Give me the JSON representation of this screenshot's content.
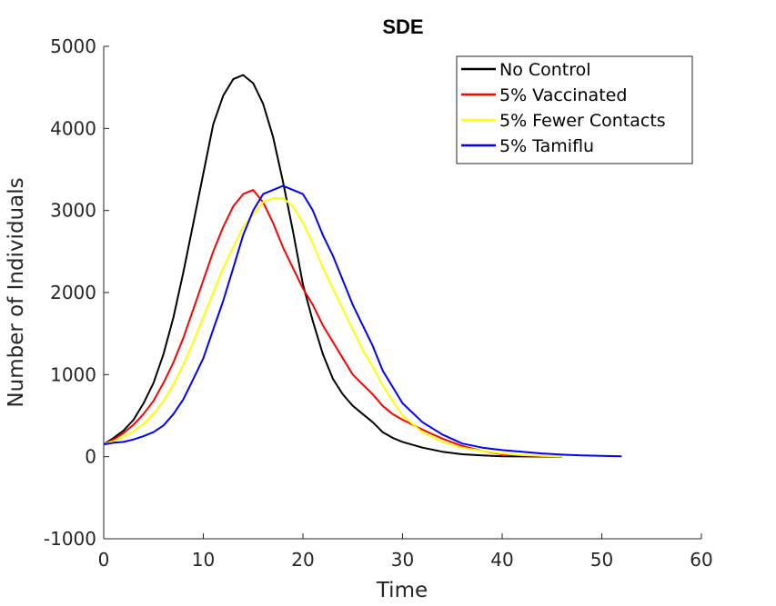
{
  "chart_data": {
    "type": "line",
    "title": "SDE",
    "xlabel": "Time",
    "ylabel": "Number of Individuals",
    "xlim": [
      0,
      60
    ],
    "ylim": [
      -1000,
      5000
    ],
    "xticks": [
      0,
      10,
      20,
      30,
      40,
      50,
      60
    ],
    "yticks": [
      -1000,
      0,
      1000,
      2000,
      3000,
      4000,
      5000
    ],
    "grid": false,
    "legend_position": "top-right",
    "series": [
      {
        "name": "No Control",
        "color": "#000000",
        "x": [
          0,
          1,
          2,
          3,
          4,
          5,
          6,
          7,
          8,
          9,
          10,
          11,
          12,
          13,
          14,
          15,
          16,
          17,
          18,
          19,
          20,
          21,
          22,
          23,
          24,
          25,
          26,
          27,
          28,
          29,
          30,
          32,
          34,
          36,
          38,
          40,
          42,
          44,
          46
        ],
        "y": [
          150,
          230,
          320,
          450,
          650,
          900,
          1250,
          1700,
          2250,
          2850,
          3450,
          4050,
          4400,
          4600,
          4650,
          4550,
          4300,
          3900,
          3350,
          2750,
          2100,
          1650,
          1250,
          950,
          760,
          620,
          520,
          420,
          300,
          230,
          180,
          110,
          60,
          30,
          15,
          5,
          3,
          2,
          1
        ]
      },
      {
        "name": "5% Vaccinated",
        "color": "#ff0000",
        "x": [
          0,
          1,
          2,
          3,
          4,
          5,
          6,
          7,
          8,
          9,
          10,
          11,
          12,
          13,
          14,
          15,
          16,
          17,
          18,
          19,
          20,
          21,
          22,
          23,
          24,
          25,
          26,
          27,
          28,
          29,
          30,
          32,
          34,
          36,
          38,
          40,
          42,
          44,
          46
        ],
        "y": [
          150,
          210,
          290,
          390,
          520,
          680,
          900,
          1150,
          1450,
          1800,
          2150,
          2500,
          2800,
          3050,
          3200,
          3250,
          3100,
          2850,
          2550,
          2300,
          2050,
          1850,
          1600,
          1400,
          1200,
          1000,
          880,
          760,
          620,
          520,
          450,
          330,
          220,
          130,
          70,
          30,
          15,
          8,
          3
        ]
      },
      {
        "name": "5% Fewer Contacts",
        "color": "#ffff00",
        "x": [
          0,
          1,
          2,
          3,
          4,
          5,
          6,
          7,
          8,
          9,
          10,
          11,
          12,
          13,
          14,
          15,
          16,
          17,
          18,
          19,
          20,
          21,
          22,
          23,
          24,
          25,
          26,
          27,
          28,
          29,
          30,
          32,
          34,
          36,
          38,
          40,
          42,
          44,
          46
        ],
        "y": [
          150,
          190,
          240,
          310,
          400,
          520,
          680,
          880,
          1120,
          1400,
          1700,
          2000,
          2300,
          2550,
          2800,
          2950,
          3100,
          3150,
          3150,
          3050,
          2850,
          2600,
          2300,
          2050,
          1800,
          1550,
          1300,
          1100,
          870,
          680,
          500,
          300,
          180,
          110,
          70,
          40,
          20,
          10,
          5
        ]
      },
      {
        "name": "5% Tamiflu",
        "color": "#0000ff",
        "x": [
          0,
          1,
          2,
          3,
          4,
          5,
          6,
          7,
          8,
          9,
          10,
          11,
          12,
          13,
          14,
          15,
          16,
          17,
          18,
          19,
          20,
          21,
          22,
          23,
          24,
          25,
          26,
          27,
          28,
          29,
          30,
          32,
          34,
          36,
          38,
          40,
          42,
          44,
          46,
          48,
          50,
          52
        ],
        "y": [
          150,
          170,
          180,
          210,
          250,
          300,
          380,
          520,
          700,
          950,
          1200,
          1550,
          1900,
          2300,
          2700,
          3000,
          3200,
          3250,
          3300,
          3250,
          3200,
          3000,
          2700,
          2450,
          2150,
          1850,
          1600,
          1350,
          1050,
          850,
          650,
          420,
          270,
          160,
          110,
          80,
          60,
          40,
          25,
          15,
          10,
          5
        ]
      }
    ]
  }
}
